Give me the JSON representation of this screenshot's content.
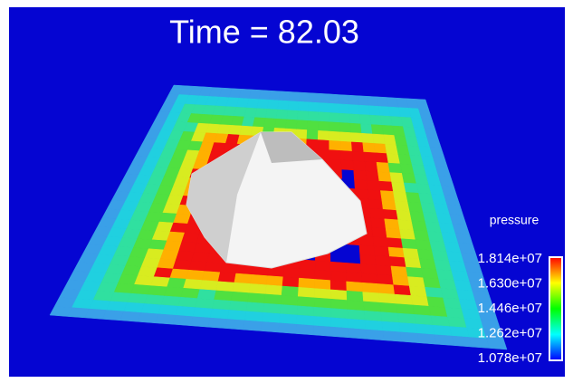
{
  "title": "Time = 82.03",
  "colorbar": {
    "label": "pressure",
    "ticks": [
      "1.814e+07",
      "1.630e+07",
      "1.446e+07",
      "1.262e+07",
      "1.078e+07"
    ]
  }
}
